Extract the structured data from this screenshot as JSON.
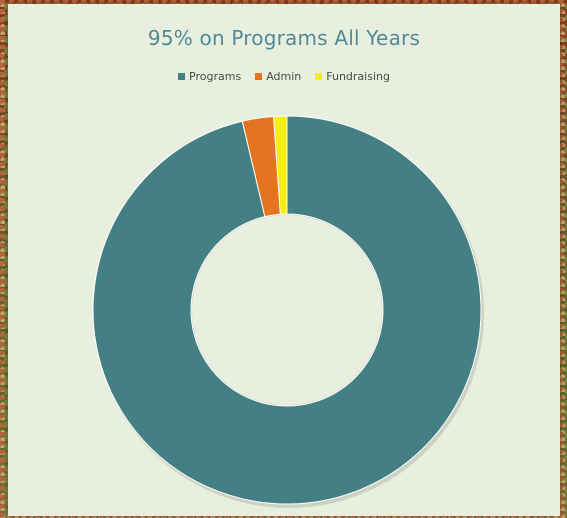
{
  "chart_data": {
    "type": "pie",
    "title": "95% on Programs All Years",
    "categories": [
      "Programs",
      "Admin",
      "Fundraising"
    ],
    "values": [
      96.3,
      2.6,
      1.1
    ],
    "colors": [
      "#447f84",
      "#e4741f",
      "#f5ef0c"
    ],
    "donut": true,
    "legend_position": "top"
  }
}
